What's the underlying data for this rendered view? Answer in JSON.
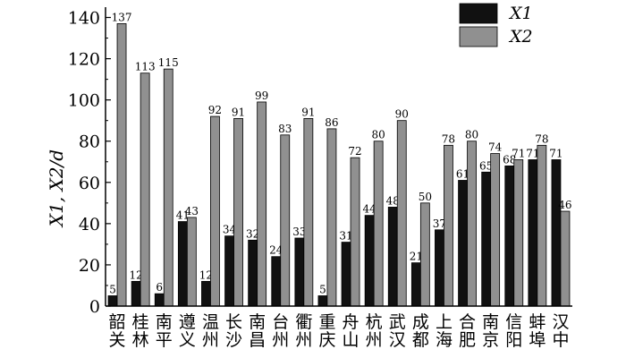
{
  "chart_data": {
    "type": "bar",
    "categories": [
      "韶关",
      "桂林",
      "南平",
      "遵义",
      "温州",
      "长沙",
      "南昌",
      "台州",
      "衢州",
      "重庆",
      "舟山",
      "杭州",
      "武汉",
      "成都",
      "上海",
      "合肥",
      "南京",
      "信阳",
      "蚌埠",
      "汉中"
    ],
    "series": [
      {
        "name": "X1",
        "color": "#111111",
        "values": [
          5,
          12,
          6,
          41,
          12,
          34,
          32,
          24,
          33,
          5,
          31,
          44,
          48,
          21,
          37,
          61,
          65,
          68,
          71,
          71
        ]
      },
      {
        "name": "X2",
        "color": "#909090",
        "values": [
          137,
          113,
          115,
          43,
          92,
          91,
          99,
          83,
          91,
          86,
          72,
          80,
          90,
          50,
          78,
          80,
          74,
          71,
          78,
          46
        ]
      }
    ],
    "ylabel": "X1, X2/d",
    "ylim": [
      0,
      145
    ],
    "yticks": [
      0,
      20,
      40,
      60,
      80,
      100,
      120,
      140
    ],
    "legend": {
      "position": "top-right",
      "entries": [
        "X1",
        "X2"
      ]
    },
    "grid": false
  }
}
